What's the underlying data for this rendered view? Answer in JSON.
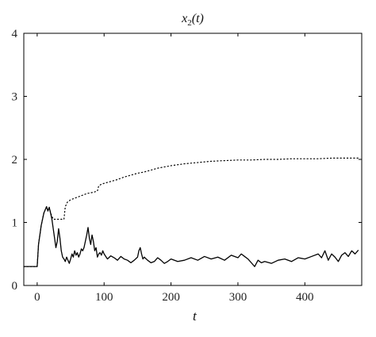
{
  "chart_data": {
    "type": "line",
    "title": "x2(t)",
    "title_parts": {
      "base": "x",
      "sub": "2",
      "rest": "(t)"
    },
    "xlabel": "t",
    "ylabel": "",
    "xlim": [
      -20,
      485
    ],
    "ylim": [
      0,
      4
    ],
    "xticks": [
      0,
      100,
      200,
      300,
      400
    ],
    "yticks": [
      0,
      1,
      2,
      3,
      4
    ],
    "grid": false,
    "series": [
      {
        "style": "solid",
        "color": "#000000",
        "x": [
          -20,
          -8,
          0,
          2,
          4,
          6,
          8,
          10,
          12,
          14,
          16,
          18,
          20,
          22,
          24,
          26,
          28,
          30,
          32,
          34,
          36,
          38,
          40,
          42,
          44,
          46,
          48,
          50,
          52,
          54,
          56,
          58,
          60,
          62,
          64,
          66,
          68,
          70,
          72,
          74,
          76,
          78,
          80,
          82,
          84,
          86,
          88,
          90,
          92,
          94,
          96,
          98,
          100,
          105,
          110,
          115,
          120,
          125,
          130,
          135,
          140,
          145,
          150,
          152,
          154,
          156,
          158,
          160,
          165,
          170,
          175,
          180,
          185,
          190,
          195,
          200,
          210,
          220,
          230,
          240,
          250,
          260,
          270,
          280,
          290,
          300,
          305,
          310,
          315,
          320,
          325,
          330,
          335,
          340,
          350,
          360,
          370,
          380,
          390,
          400,
          410,
          420,
          425,
          430,
          435,
          440,
          445,
          450,
          455,
          460,
          465,
          470,
          475,
          480
        ],
        "y": [
          0.3,
          0.3,
          0.3,
          0.65,
          0.8,
          0.95,
          1.05,
          1.15,
          1.2,
          1.25,
          1.18,
          1.24,
          1.15,
          1.05,
          0.9,
          0.75,
          0.6,
          0.7,
          0.9,
          0.75,
          0.55,
          0.45,
          0.42,
          0.38,
          0.45,
          0.4,
          0.35,
          0.42,
          0.5,
          0.45,
          0.55,
          0.48,
          0.52,
          0.45,
          0.5,
          0.58,
          0.55,
          0.6,
          0.7,
          0.8,
          0.92,
          0.75,
          0.65,
          0.8,
          0.7,
          0.55,
          0.6,
          0.45,
          0.5,
          0.52,
          0.48,
          0.55,
          0.5,
          0.42,
          0.47,
          0.44,
          0.4,
          0.46,
          0.42,
          0.4,
          0.36,
          0.4,
          0.45,
          0.55,
          0.6,
          0.5,
          0.42,
          0.45,
          0.4,
          0.36,
          0.38,
          0.44,
          0.4,
          0.35,
          0.38,
          0.42,
          0.38,
          0.4,
          0.44,
          0.4,
          0.46,
          0.42,
          0.45,
          0.4,
          0.48,
          0.44,
          0.5,
          0.46,
          0.42,
          0.36,
          0.3,
          0.4,
          0.36,
          0.38,
          0.35,
          0.4,
          0.42,
          0.38,
          0.44,
          0.42,
          0.46,
          0.5,
          0.44,
          0.55,
          0.4,
          0.5,
          0.45,
          0.38,
          0.48,
          0.52,
          0.46,
          0.55,
          0.5,
          0.56
        ]
      },
      {
        "style": "dotted",
        "color": "#000000",
        "x": [
          -20,
          -8,
          0,
          2,
          4,
          6,
          8,
          10,
          12,
          14,
          16,
          18,
          20,
          22,
          24,
          26,
          30,
          35,
          40,
          42,
          45,
          50,
          55,
          60,
          65,
          70,
          75,
          80,
          85,
          90,
          92,
          95,
          100,
          110,
          120,
          130,
          140,
          150,
          160,
          170,
          180,
          190,
          200,
          220,
          240,
          260,
          280,
          300,
          320,
          340,
          360,
          380,
          400,
          420,
          440,
          460,
          480
        ],
        "y": [
          0.3,
          0.3,
          0.3,
          0.65,
          0.8,
          0.95,
          1.05,
          1.15,
          1.2,
          1.25,
          1.18,
          1.24,
          1.15,
          1.1,
          1.05,
          1.05,
          1.05,
          1.05,
          1.05,
          1.25,
          1.32,
          1.36,
          1.38,
          1.4,
          1.42,
          1.44,
          1.46,
          1.47,
          1.48,
          1.5,
          1.58,
          1.6,
          1.62,
          1.65,
          1.68,
          1.72,
          1.75,
          1.78,
          1.8,
          1.83,
          1.86,
          1.88,
          1.9,
          1.93,
          1.95,
          1.97,
          1.98,
          1.99,
          1.99,
          2.0,
          2.0,
          2.01,
          2.01,
          2.01,
          2.02,
          2.02,
          2.02
        ]
      }
    ]
  }
}
